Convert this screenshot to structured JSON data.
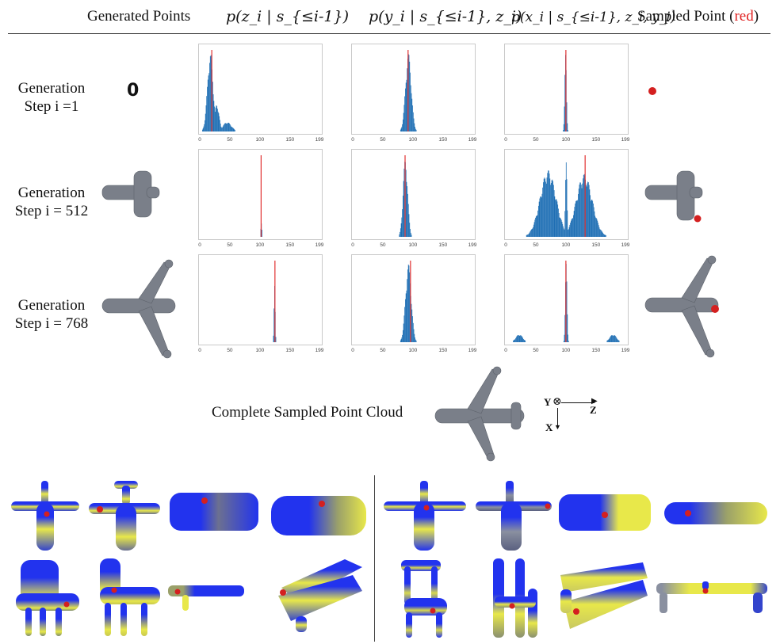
{
  "headers": {
    "generated_points": "Generated Points",
    "pz": "p(z_i | s_{≤i-1})",
    "py": "p(y_i | s_{≤i-1}, z_i)",
    "px": "p(x_i | s_{≤i-1}, z_i, y_i)",
    "sampled_prefix": "Sampled Point (",
    "sampled_red": "red",
    "sampled_suffix": ")"
  },
  "rows": [
    {
      "line1": "Generation",
      "line2": "Step i =1",
      "generated": "0"
    },
    {
      "line1": "Generation",
      "line2": "Step i = 512"
    },
    {
      "line1": "Generation",
      "line2": "Step i = 768"
    }
  ],
  "complete_label": "Complete Sampled Point Cloud",
  "axes_icon": {
    "y": "Y",
    "z": "Z",
    "x": "X"
  },
  "colors": {
    "hist": "#1f6fb4",
    "sample_line": "#e03030",
    "points": "#7a7f89",
    "red_point": "#d42020",
    "blue": "#2233ee",
    "yellow": "#e8e84a"
  },
  "chart_data": [
    {
      "type": "bar",
      "row": 1,
      "dist": "z",
      "xticks": [
        0,
        50,
        100,
        150,
        199
      ],
      "xlim": [
        0,
        199
      ],
      "peaks": [
        {
          "center": 17,
          "width": 10,
          "height": 1.0
        },
        {
          "center": 28,
          "width": 8,
          "height": 0.35
        },
        {
          "center": 45,
          "width": 15,
          "height": 0.12
        }
      ],
      "sample": 20
    },
    {
      "type": "bar",
      "row": 1,
      "dist": "y",
      "xticks": [
        0,
        50,
        100,
        150,
        199
      ],
      "xlim": [
        0,
        199
      ],
      "peaks": [
        {
          "center": 92,
          "width": 10,
          "height": 1.0
        }
      ],
      "sample": 92
    },
    {
      "type": "bar",
      "row": 1,
      "dist": "x",
      "xticks": [
        0,
        50,
        100,
        150,
        199
      ],
      "xlim": [
        0,
        199
      ],
      "peaks": [
        {
          "center": 99,
          "width": 3,
          "height": 1.0
        }
      ],
      "sample": 100
    },
    {
      "type": "bar",
      "row": 2,
      "dist": "z",
      "xticks": [
        0,
        50,
        100,
        150,
        199
      ],
      "xlim": [
        0,
        199
      ],
      "peaks": [
        {
          "center": 102,
          "width": 2,
          "height": 0.18
        }
      ],
      "sample": 102
    },
    {
      "type": "bar",
      "row": 2,
      "dist": "y",
      "xticks": [
        0,
        50,
        100,
        150,
        199
      ],
      "xlim": [
        0,
        199
      ],
      "peaks": [
        {
          "center": 87,
          "width": 8,
          "height": 1.0
        }
      ],
      "sample": 87
    },
    {
      "type": "bar",
      "row": 2,
      "dist": "x",
      "xticks": [
        0,
        50,
        100,
        150,
        199
      ],
      "xlim": [
        0,
        199
      ],
      "peaks": [
        {
          "center": 70,
          "width": 28,
          "height": 0.85
        },
        {
          "center": 130,
          "width": 28,
          "height": 0.8
        },
        {
          "center": 100,
          "width": 3,
          "height": 0.95
        }
      ],
      "sample": 132
    },
    {
      "type": "bar",
      "row": 3,
      "dist": "z",
      "xticks": [
        0,
        50,
        100,
        150,
        199
      ],
      "xlim": [
        0,
        199
      ],
      "peaks": [
        {
          "center": 124,
          "width": 2,
          "height": 0.75
        }
      ],
      "sample": 125
    },
    {
      "type": "bar",
      "row": 3,
      "dist": "y",
      "xticks": [
        0,
        50,
        100,
        150,
        199
      ],
      "xlim": [
        0,
        199
      ],
      "peaks": [
        {
          "center": 92,
          "width": 10,
          "height": 1.0
        }
      ],
      "sample": 96
    },
    {
      "type": "bar",
      "row": 3,
      "dist": "x",
      "xticks": [
        0,
        50,
        100,
        150,
        199
      ],
      "xlim": [
        0,
        199
      ],
      "peaks": [
        {
          "center": 100,
          "width": 3,
          "height": 1.0
        },
        {
          "center": 22,
          "width": 12,
          "height": 0.1
        },
        {
          "center": 178,
          "width": 12,
          "height": 0.1
        }
      ],
      "sample": 100
    }
  ]
}
